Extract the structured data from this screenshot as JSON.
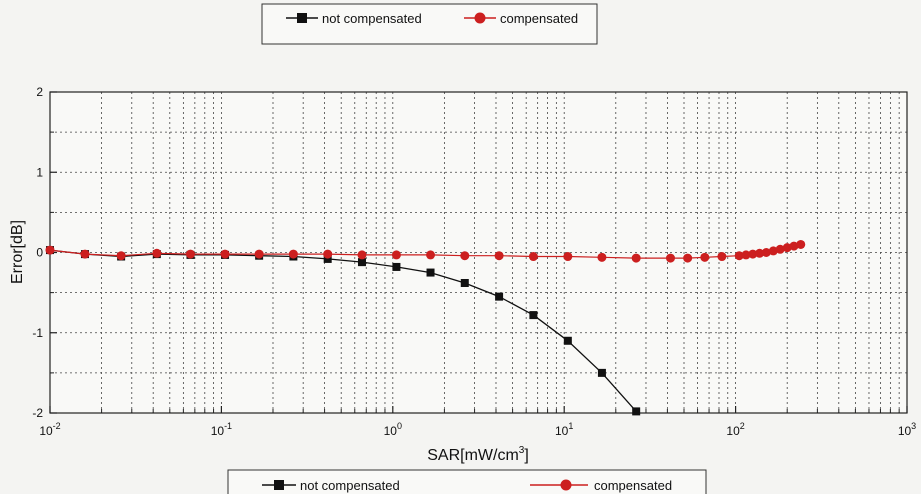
{
  "chart_data": {
    "type": "line",
    "xlabel": "SAR[mW/cm",
    "xlabel_sup": "3",
    "xlabel_suffix": "]",
    "ylabel": "Error[dB]",
    "x_scale": "log",
    "xlim": [
      0.01,
      1000
    ],
    "ylim": [
      -2,
      2
    ],
    "x_ticks": [
      {
        "base": "10",
        "exp": "-2"
      },
      {
        "base": "10",
        "exp": "-1"
      },
      {
        "base": "10",
        "exp": "0"
      },
      {
        "base": "10",
        "exp": "1"
      },
      {
        "base": "10",
        "exp": "2"
      },
      {
        "base": "10",
        "exp": "3"
      }
    ],
    "y_ticks": [
      "-2",
      "-1",
      "0",
      "1",
      "2"
    ],
    "grid": true,
    "legend_placement": "top-center and bottom-center",
    "series": [
      {
        "name": "not compensated",
        "color": "#111111",
        "marker": "square",
        "x": [
          0.01,
          0.016,
          0.026,
          0.042,
          0.066,
          0.105,
          0.166,
          0.263,
          0.417,
          0.661,
          1.05,
          1.66,
          2.63,
          4.17,
          6.61,
          10.5,
          16.6,
          26.3
        ],
        "y": [
          0.03,
          -0.02,
          -0.05,
          -0.02,
          -0.03,
          -0.03,
          -0.04,
          -0.05,
          -0.08,
          -0.12,
          -0.18,
          -0.25,
          -0.38,
          -0.55,
          -0.78,
          -1.1,
          -1.5,
          -1.98
        ]
      },
      {
        "name": "compensated",
        "color": "#cc1f1f",
        "marker": "circle",
        "x": [
          0.01,
          0.016,
          0.026,
          0.042,
          0.066,
          0.105,
          0.166,
          0.263,
          0.417,
          0.661,
          1.05,
          1.66,
          2.63,
          4.17,
          6.61,
          10.5,
          16.6,
          26.3,
          41.7,
          52.5,
          66.1,
          83.2,
          105,
          115,
          126,
          138,
          151,
          166,
          182,
          200,
          219,
          240
        ],
        "y": [
          0.03,
          -0.02,
          -0.04,
          -0.01,
          -0.02,
          -0.02,
          -0.02,
          -0.02,
          -0.02,
          -0.03,
          -0.03,
          -0.03,
          -0.04,
          -0.04,
          -0.05,
          -0.05,
          -0.06,
          -0.07,
          -0.07,
          -0.07,
          -0.06,
          -0.05,
          -0.04,
          -0.03,
          -0.02,
          -0.01,
          0.0,
          0.02,
          0.04,
          0.06,
          0.08,
          0.1
        ]
      }
    ]
  },
  "legend_top": {
    "items": [
      {
        "label": "not compensated"
      },
      {
        "label": "compensated"
      }
    ]
  },
  "legend_bottom": {
    "items": [
      {
        "label": "not compensated"
      },
      {
        "label": "compensated"
      }
    ]
  }
}
